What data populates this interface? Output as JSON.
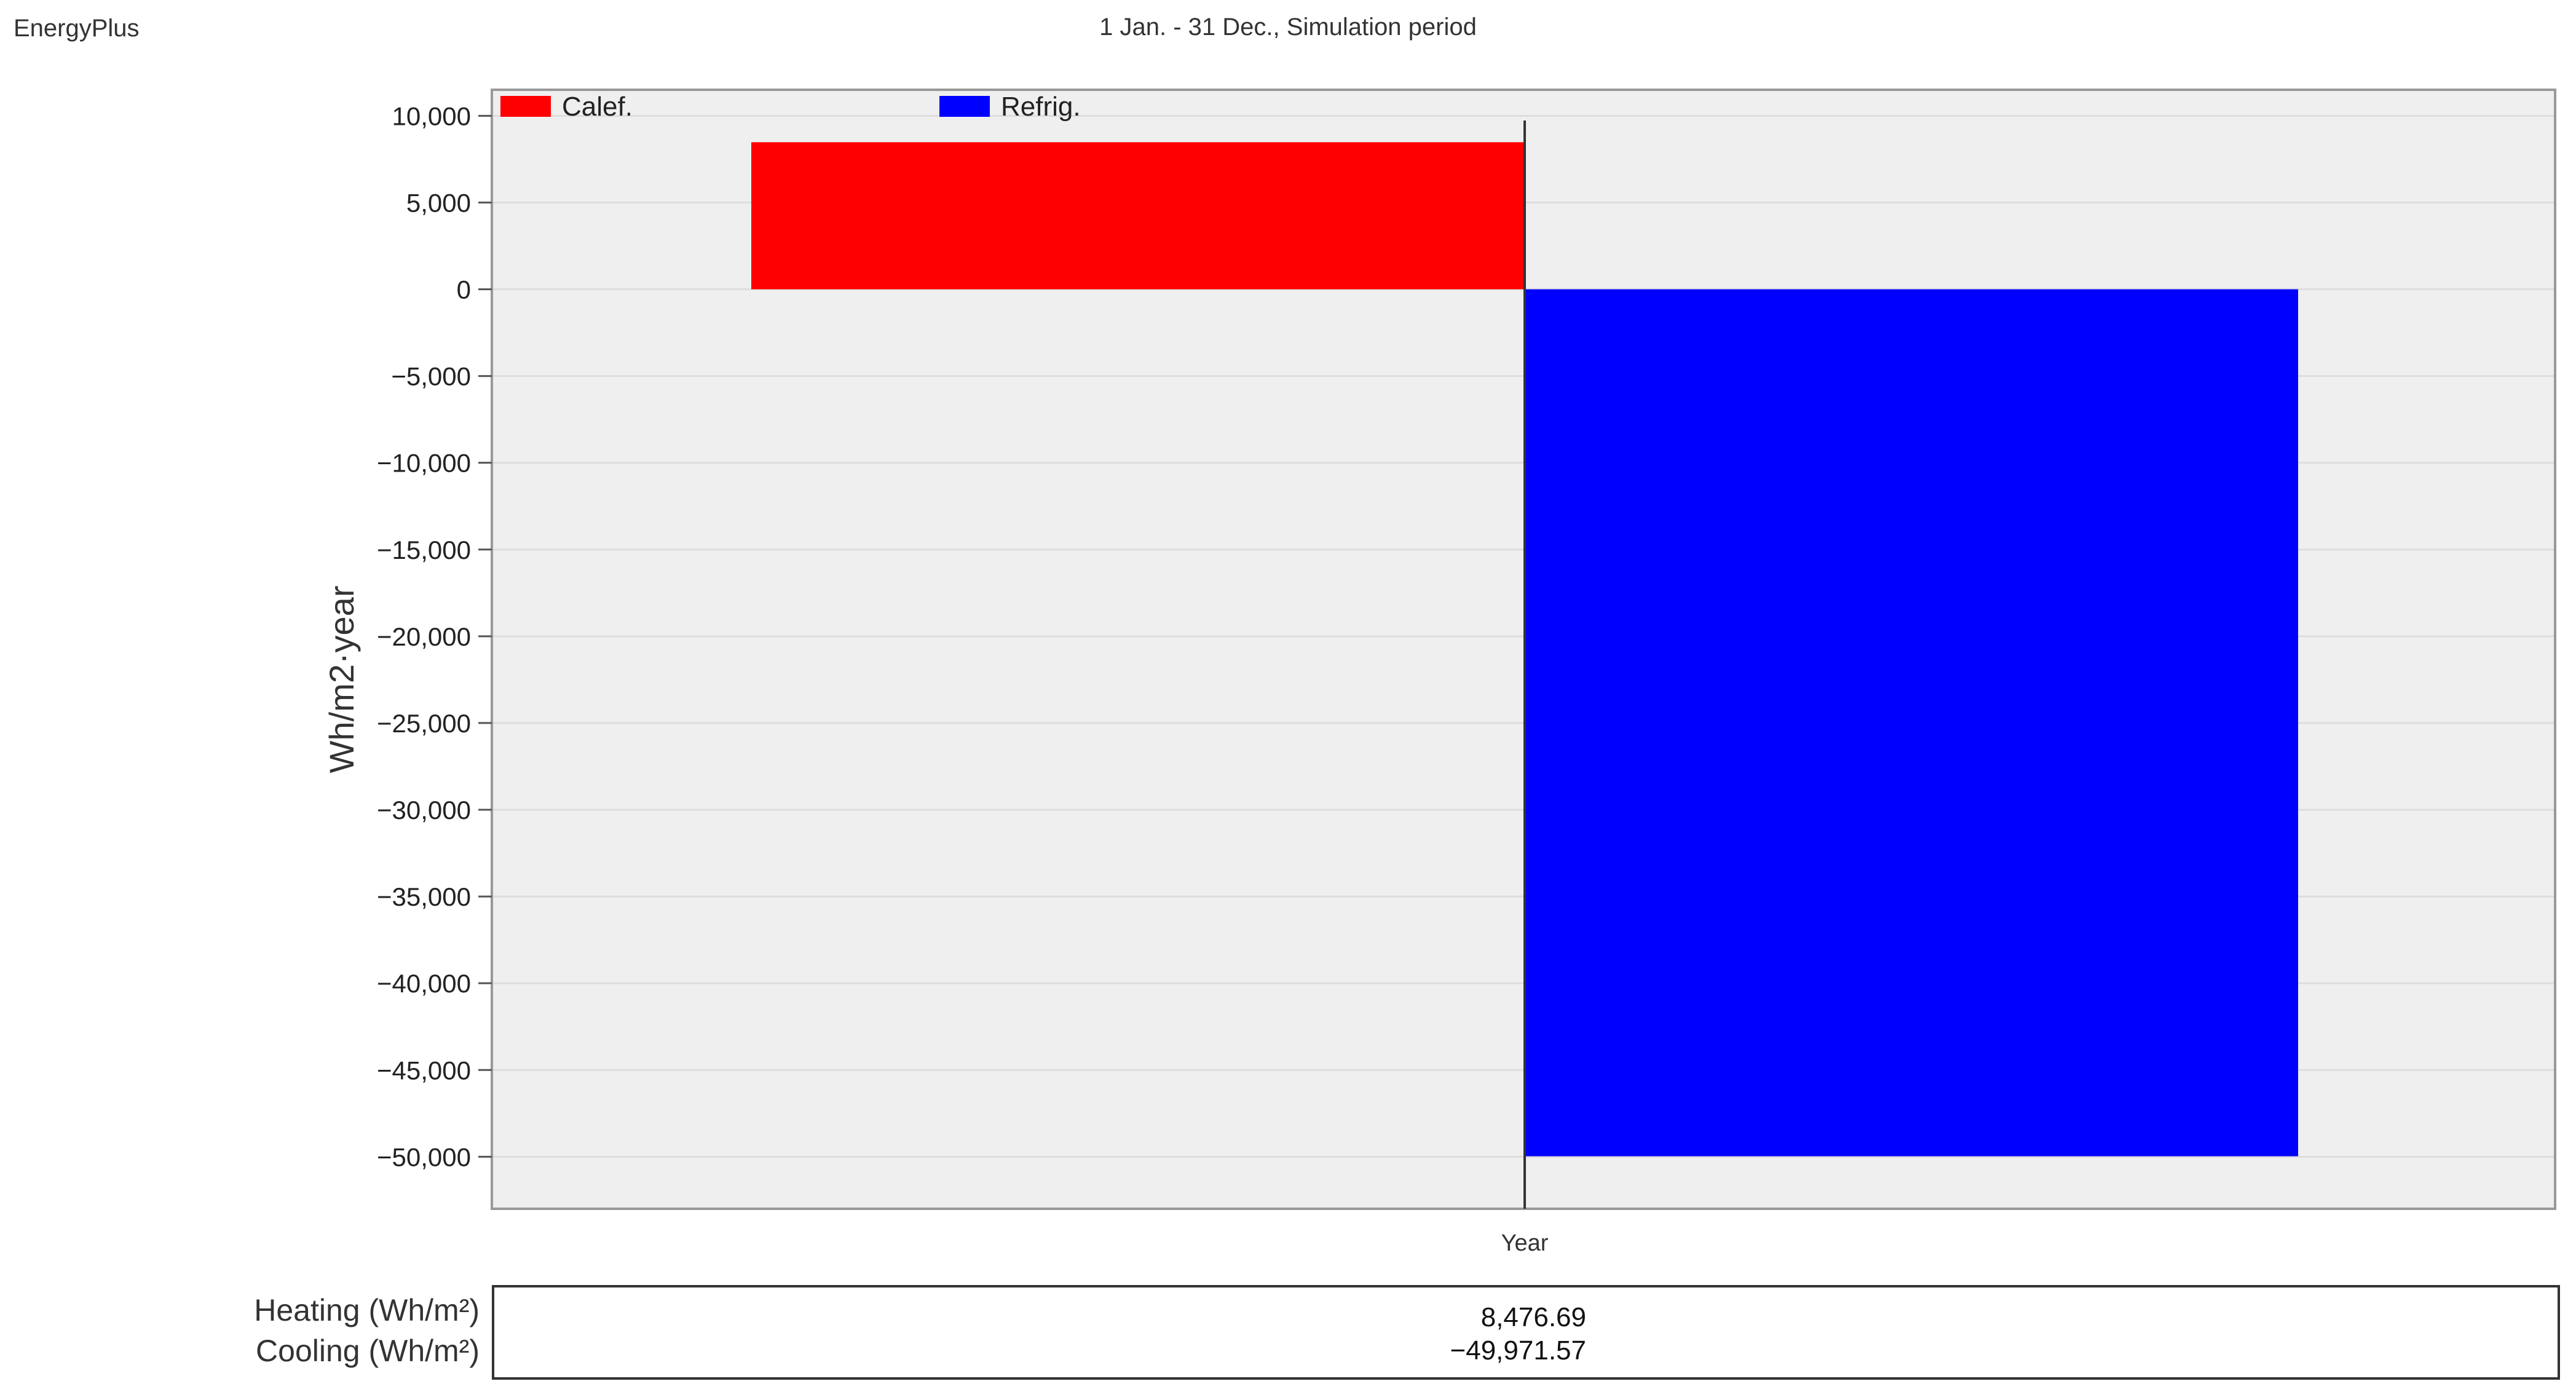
{
  "app_name": "EnergyPlus",
  "chart_data": {
    "type": "bar",
    "title": "1 Jan. - 31 Dec., Simulation period",
    "categories": [
      "Year"
    ],
    "series": [
      {
        "name": "Calef.",
        "values": [
          8476.69
        ],
        "color": "#ff0000"
      },
      {
        "name": "Refrig.",
        "values": [
          -49971.57
        ],
        "color": "#0000ff"
      }
    ],
    "xlabel": "Year",
    "ylabel": "Wh/m2·year",
    "ylim": [
      -53000,
      11500
    ],
    "yticks": [
      10000,
      5000,
      0,
      -5000,
      -10000,
      -15000,
      -20000,
      -25000,
      -30000,
      -35000,
      -40000,
      -45000,
      -50000
    ],
    "ytick_labels": [
      "10,000",
      "5,000",
      "0",
      "−5,000",
      "−10,000",
      "−15,000",
      "−20,000",
      "−25,000",
      "−30,000",
      "−35,000",
      "−40,000",
      "−45,000",
      "−50,000"
    ],
    "grid": true,
    "legend": "top-left"
  },
  "summary": {
    "heating_label": "Heating (Wh/m²)",
    "cooling_label": "Cooling (Wh/m²)",
    "heating_value": "8,476.69",
    "cooling_value": "−49,971.57"
  }
}
